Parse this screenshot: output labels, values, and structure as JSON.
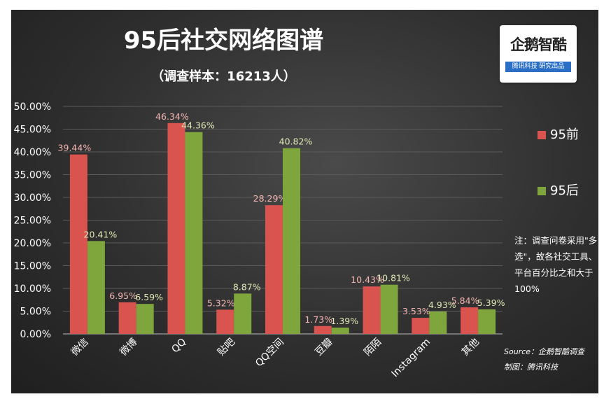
{
  "title": "95后社交网络图谱",
  "subtitle": "（调查样本：16213人）",
  "logo": {
    "brand": "企鹅智酷",
    "band": "腾讯科技 研究出品"
  },
  "colors": {
    "s1": "#d9534f",
    "s2": "#7ea63c",
    "label1": "#f4b6b2",
    "label2": "#dfe8b4"
  },
  "legend": [
    {
      "name": "95前",
      "color": "#d9534f"
    },
    {
      "name": "95后",
      "color": "#7ea63c"
    }
  ],
  "note": "注：调查问卷采用\"多选\"，故各社交工具、平台百分比之和大于100%",
  "source": {
    "line1": "Source：企鹅智酷调查",
    "line2": "制图：腾讯科技"
  },
  "chart_data": {
    "type": "bar",
    "categories": [
      "微信",
      "微博",
      "QQ",
      "贴吧",
      "QQ空间",
      "豆瓣",
      "陌陌",
      "Instagram",
      "其他"
    ],
    "series": [
      {
        "name": "95前",
        "values": [
          39.44,
          6.95,
          46.34,
          5.32,
          28.29,
          1.73,
          10.43,
          3.53,
          5.84
        ]
      },
      {
        "name": "95后",
        "values": [
          20.41,
          6.59,
          44.36,
          8.87,
          40.82,
          1.39,
          10.81,
          4.93,
          5.39
        ]
      }
    ],
    "y_ticks": [
      "0.00%",
      "5.00%",
      "10.00%",
      "15.00%",
      "20.00%",
      "25.00%",
      "30.00%",
      "35.00%",
      "40.00%",
      "45.00%",
      "50.00%"
    ],
    "ylim": [
      0,
      50
    ],
    "grid": true,
    "legend_position": "right"
  }
}
